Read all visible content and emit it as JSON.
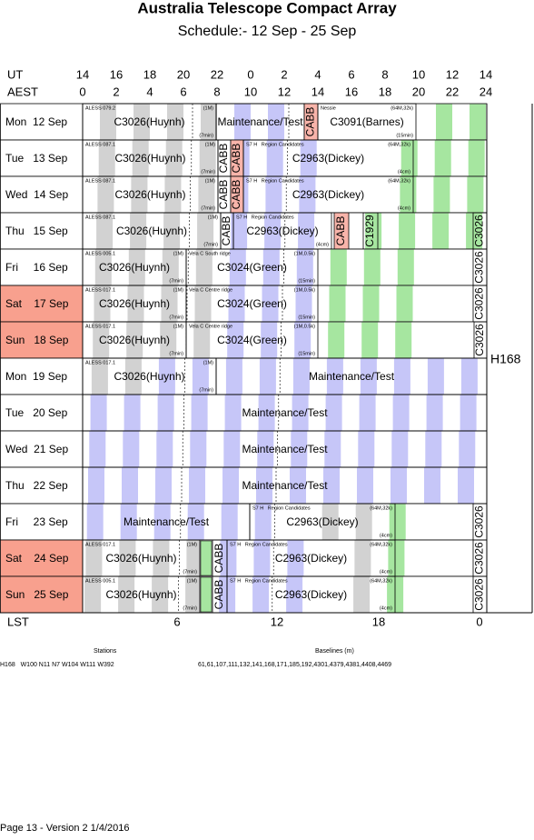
{
  "title": "Australia Telescope Compact Array",
  "subtitle": "Schedule:- 12 Sep - 25 Sep",
  "header": {
    "ut_label": "UT",
    "ut": [
      14,
      16,
      18,
      20,
      22,
      0,
      2,
      4,
      6,
      8,
      10,
      12,
      14
    ],
    "aest_label": "AEST",
    "aest": [
      0,
      2,
      4,
      6,
      8,
      10,
      12,
      14,
      16,
      18,
      20,
      22,
      24
    ]
  },
  "days": [
    {
      "label": "Mon  12 Sep",
      "weekend": false,
      "blocks": [
        {
          "source": "ALESS 079.2",
          "setup": "(1M)",
          "project": "C3026(Huynh)",
          "cycle": "(7min)"
        },
        {
          "project": "Maintenance/Test"
        },
        {
          "project": "CABB",
          "vertical": true,
          "highlight": true
        },
        {
          "source": "Nessie",
          "setup": "(64M,32k)",
          "project": "C3091(Barnes)",
          "cycle": "(15min)"
        }
      ]
    },
    {
      "label": "Tue   13 Sep",
      "weekend": false,
      "blocks": [
        {
          "source": "ALESS 087.1",
          "setup": "(1M)",
          "project": "C3026(Huynh)",
          "cycle": "(7min)"
        },
        {
          "project": "CABB",
          "vertical": true,
          "highlight": false
        },
        {
          "project": "CABB",
          "vertical": true,
          "highlight": true
        },
        {
          "source": "S7 H   Region Candidates",
          "setup": "(64M,32k)",
          "project": "C2963(Dickey)",
          "cycle": "(4cm)"
        }
      ]
    },
    {
      "label": "Wed  14 Sep",
      "weekend": false,
      "blocks": [
        {
          "source": "ALESS 087.1",
          "setup": "(1M)",
          "project": "C3026(Huynh)",
          "cycle": "(7min)"
        },
        {
          "project": "CABB",
          "vertical": true,
          "highlight": false
        },
        {
          "project": "CABB",
          "vertical": true,
          "highlight": true
        },
        {
          "source": "S7 H   Region Candidates",
          "setup": "(64M,32k)",
          "project": "C2963(Dickey)",
          "cycle": "(4cm)"
        }
      ]
    },
    {
      "label": "Thu   15 Sep",
      "weekend": false,
      "blocks": [
        {
          "source": "ALESS 087.1",
          "setup": "(1M)",
          "project": "C3026(Huynh)",
          "cycle": "(7min)"
        },
        {
          "project": "CABB",
          "vertical": true,
          "highlight": false
        },
        {
          "source": "S7 H   Region Candidates",
          "project": "C2963(Dickey)",
          "cycle": "(4cm)"
        },
        {
          "project": "CABB",
          "vertical": true,
          "highlight": true
        },
        {
          "project": "C1929",
          "vertical": true,
          "highlight": false
        },
        {
          "project": "C3026",
          "vertical": true,
          "highlight": false
        }
      ]
    },
    {
      "label": "Fri     16 Sep",
      "weekend": false,
      "blocks": [
        {
          "source": "ALESS 005.1",
          "setup": "(1M)",
          "project": "C3026(Huynh)",
          "cycle": "(7min)"
        },
        {
          "source": "Vela C South ridge",
          "setup": "(1M,0.5k)",
          "project": "C3024(Green)",
          "cycle": "(15min)"
        },
        {
          "project": "C3026",
          "vertical": true,
          "highlight": false
        }
      ]
    },
    {
      "label": "Sat    17 Sep",
      "weekend": true,
      "blocks": [
        {
          "source": "ALESS 017.1",
          "setup": "(1M)",
          "project": "C3026(Huynh)",
          "cycle": "(7min)"
        },
        {
          "source": "Vela C Centre ridge",
          "setup": "(1M,0.5k)",
          "project": "C3024(Green)",
          "cycle": "(15min)"
        },
        {
          "project": "C3026",
          "vertical": true,
          "highlight": false
        }
      ]
    },
    {
      "label": "Sun   18 Sep",
      "weekend": true,
      "blocks": [
        {
          "source": "ALESS 017.1",
          "setup": "(1M)",
          "project": "C3026(Huynh)",
          "cycle": "(7min)"
        },
        {
          "source": "Vela C Centre ridge",
          "setup": "(1M,0.5k)",
          "project": "C3024(Green)",
          "cycle": "(15min)"
        },
        {
          "project": "C3026",
          "vertical": true,
          "highlight": false
        }
      ]
    },
    {
      "label": "Mon  19 Sep",
      "weekend": false,
      "blocks": [
        {
          "source": "ALESS 017.1",
          "setup": "(1M)",
          "project": "C3026(Huynh)",
          "cycle": "(7min)"
        },
        {
          "project": "Maintenance/Test"
        }
      ]
    },
    {
      "label": "Tue   20 Sep",
      "weekend": false,
      "blocks": [
        {
          "project": "Maintenance/Test"
        }
      ]
    },
    {
      "label": "Wed  21 Sep",
      "weekend": false,
      "blocks": [
        {
          "project": "Maintenance/Test"
        }
      ]
    },
    {
      "label": "Thu   22 Sep",
      "weekend": false,
      "blocks": [
        {
          "project": "Maintenance/Test"
        }
      ]
    },
    {
      "label": "Fri     23 Sep",
      "weekend": false,
      "blocks": [
        {
          "project": "Maintenance/Test"
        },
        {
          "source": "S7 H   Region Candidates",
          "setup": "(64M,32k)",
          "project": "C2963(Dickey)",
          "cycle": "(4cm)"
        },
        {
          "project": "C3026",
          "vertical": true,
          "highlight": false
        }
      ]
    },
    {
      "label": "Sat    24 Sep",
      "weekend": true,
      "blocks": [
        {
          "source": "ALESS 017.1",
          "setup": "(1M)",
          "project": "C3026(Huynh)",
          "cycle": "(7min)"
        },
        {
          "project": "CABB",
          "vertical": true,
          "highlight": false
        },
        {
          "source": "S7 H   Region Candidates",
          "setup": "(64M,32k)",
          "project": "C2963(Dickey)",
          "cycle": "(4cm)"
        },
        {
          "project": "C3026",
          "vertical": true,
          "highlight": false
        }
      ]
    },
    {
      "label": "Sun   25 Sep",
      "weekend": true,
      "blocks": [
        {
          "source": "ALESS 005.1",
          "setup": "(1M)",
          "project": "C3026(Huynh)",
          "cycle": "(7min)"
        },
        {
          "project": "CABB",
          "vertical": true,
          "highlight": false
        },
        {
          "source": "S7 H   Region Candidates",
          "setup": "(64M,32k)",
          "project": "C2963(Dickey)",
          "cycle": "(4cm)"
        },
        {
          "project": "C3026",
          "vertical": true,
          "highlight": false
        }
      ]
    }
  ],
  "array_config": "H168",
  "lst": {
    "label": "LST",
    "ticks": [
      6,
      12,
      18,
      0
    ]
  },
  "footer": {
    "stations_heading": "Stations",
    "stations": "H168   W100 N11 N7 W104 W111 W392",
    "baselines_heading": "Baselines (m)",
    "baselines": "61,61,107,111,132,141,168,171,185,192,4301,4379,4381,4408,4469",
    "page": "Page 13 - Version 2  1/4/2016"
  }
}
